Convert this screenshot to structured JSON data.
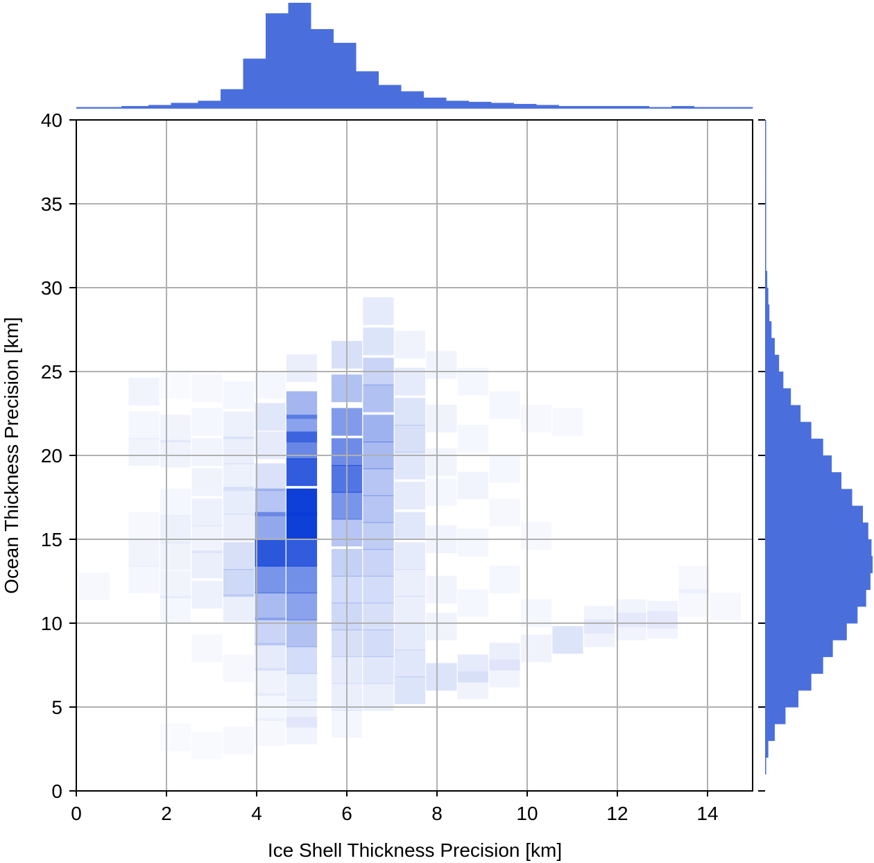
{
  "chart_data": {
    "type": "heatmap",
    "subtype": "joint-histogram-with-marginals",
    "title": "",
    "xlabel": "Ice Shell Thickness Precision [km]",
    "ylabel": "Ocean Thickness Precision [km]",
    "xlim": [
      0,
      15
    ],
    "ylim": [
      0,
      40
    ],
    "x_ticks": [
      0,
      2,
      4,
      6,
      8,
      10,
      12,
      14
    ],
    "y_ticks": [
      0,
      5,
      10,
      15,
      20,
      25,
      30,
      35,
      40
    ],
    "grid": true,
    "color": "#4a6fdc",
    "heatmap_color": "#0a3dd6",
    "joint_bin_edges_note": "",
    "joint_cells": [
      [
        -0.3,
        12.5,
        0.02
      ],
      [
        0.4,
        12.2,
        0.03
      ],
      [
        1.5,
        23.8,
        0.05
      ],
      [
        1.5,
        21.8,
        0.04
      ],
      [
        1.5,
        20.2,
        0.05
      ],
      [
        1.5,
        15.8,
        0.03
      ],
      [
        1.5,
        14.2,
        0.05
      ],
      [
        1.5,
        12.6,
        0.04
      ],
      [
        2.2,
        24.2,
        0.02
      ],
      [
        2.2,
        21.6,
        0.05
      ],
      [
        2.2,
        20.1,
        0.06
      ],
      [
        2.2,
        17.2,
        0.04
      ],
      [
        2.2,
        15.6,
        0.07
      ],
      [
        2.2,
        14.0,
        0.06
      ],
      [
        2.2,
        12.3,
        0.05
      ],
      [
        2.2,
        10.8,
        0.04
      ],
      [
        2.2,
        3.2,
        0.02
      ],
      [
        2.9,
        24.0,
        0.03
      ],
      [
        2.9,
        22.0,
        0.04
      ],
      [
        2.9,
        20.2,
        0.05
      ],
      [
        2.9,
        18.4,
        0.06
      ],
      [
        2.9,
        16.6,
        0.07
      ],
      [
        2.9,
        15.0,
        0.06
      ],
      [
        2.9,
        13.5,
        0.08
      ],
      [
        2.9,
        11.7,
        0.07
      ],
      [
        2.9,
        8.5,
        0.03
      ],
      [
        2.9,
        2.7,
        0.02
      ],
      [
        3.6,
        23.6,
        0.04
      ],
      [
        3.6,
        21.8,
        0.07
      ],
      [
        3.6,
        20.3,
        0.08
      ],
      [
        3.6,
        18.7,
        0.07
      ],
      [
        3.6,
        17.3,
        0.09
      ],
      [
        3.6,
        15.7,
        0.08
      ],
      [
        3.6,
        14.0,
        0.16
      ],
      [
        3.6,
        12.4,
        0.2
      ],
      [
        3.6,
        10.9,
        0.08
      ],
      [
        3.6,
        7.3,
        0.03
      ],
      [
        3.6,
        3.0,
        0.03
      ],
      [
        4.3,
        24.2,
        0.04
      ],
      [
        4.3,
        22.3,
        0.12
      ],
      [
        4.3,
        20.6,
        0.1
      ],
      [
        4.3,
        18.7,
        0.15
      ],
      [
        4.3,
        17.2,
        0.3
      ],
      [
        4.3,
        15.8,
        0.45
      ],
      [
        4.3,
        14.2,
        0.88
      ],
      [
        4.3,
        12.6,
        0.55
      ],
      [
        4.3,
        11.0,
        0.35
      ],
      [
        4.3,
        9.5,
        0.22
      ],
      [
        4.3,
        8.0,
        0.1
      ],
      [
        4.3,
        6.5,
        0.06
      ],
      [
        4.3,
        5.0,
        0.04
      ],
      [
        4.3,
        3.5,
        0.03
      ],
      [
        5.0,
        25.2,
        0.08
      ],
      [
        5.0,
        23.0,
        0.38
      ],
      [
        5.0,
        21.6,
        0.48
      ],
      [
        5.0,
        20.6,
        0.62
      ],
      [
        5.0,
        19.0,
        0.85
      ],
      [
        5.0,
        17.2,
        1.0
      ],
      [
        5.0,
        15.8,
        1.0
      ],
      [
        5.0,
        14.2,
        0.85
      ],
      [
        5.0,
        12.6,
        0.58
      ],
      [
        5.0,
        11.0,
        0.48
      ],
      [
        5.0,
        9.4,
        0.32
      ],
      [
        5.0,
        7.8,
        0.18
      ],
      [
        5.0,
        6.2,
        0.09
      ],
      [
        5.0,
        4.6,
        0.07
      ],
      [
        5.0,
        3.6,
        0.05
      ],
      [
        6.0,
        26.0,
        0.16
      ],
      [
        6.0,
        24.0,
        0.32
      ],
      [
        6.0,
        22.0,
        0.52
      ],
      [
        6.0,
        20.2,
        0.6
      ],
      [
        6.0,
        18.6,
        0.72
      ],
      [
        6.0,
        17.0,
        0.55
      ],
      [
        6.0,
        15.4,
        0.3
      ],
      [
        6.0,
        13.6,
        0.24
      ],
      [
        6.0,
        12.0,
        0.18
      ],
      [
        6.0,
        10.4,
        0.2
      ],
      [
        6.0,
        8.8,
        0.16
      ],
      [
        6.0,
        7.2,
        0.1
      ],
      [
        6.0,
        5.6,
        0.08
      ],
      [
        6.0,
        4.0,
        0.04
      ],
      [
        6.7,
        28.6,
        0.1
      ],
      [
        6.7,
        26.8,
        0.14
      ],
      [
        6.7,
        25.0,
        0.22
      ],
      [
        6.7,
        23.4,
        0.32
      ],
      [
        6.7,
        21.6,
        0.4
      ],
      [
        6.7,
        20.0,
        0.36
      ],
      [
        6.7,
        18.4,
        0.3
      ],
      [
        6.7,
        16.8,
        0.3
      ],
      [
        6.7,
        15.2,
        0.26
      ],
      [
        6.7,
        13.6,
        0.22
      ],
      [
        6.7,
        12.0,
        0.18
      ],
      [
        6.7,
        10.4,
        0.16
      ],
      [
        6.7,
        8.8,
        0.18
      ],
      [
        6.7,
        7.2,
        0.12
      ],
      [
        6.7,
        5.6,
        0.08
      ],
      [
        7.4,
        26.6,
        0.06
      ],
      [
        7.4,
        24.4,
        0.1
      ],
      [
        7.4,
        22.6,
        0.14
      ],
      [
        7.4,
        21.0,
        0.16
      ],
      [
        7.4,
        19.4,
        0.12
      ],
      [
        7.4,
        17.6,
        0.1
      ],
      [
        7.4,
        15.8,
        0.12
      ],
      [
        7.4,
        14.0,
        0.1
      ],
      [
        7.4,
        12.4,
        0.08
      ],
      [
        7.4,
        10.8,
        0.08
      ],
      [
        7.4,
        9.2,
        0.1
      ],
      [
        7.4,
        7.6,
        0.12
      ],
      [
        7.4,
        6.0,
        0.14
      ],
      [
        8.1,
        25.4,
        0.05
      ],
      [
        8.1,
        22.2,
        0.06
      ],
      [
        8.1,
        19.6,
        0.05
      ],
      [
        8.1,
        17.8,
        0.04
      ],
      [
        8.1,
        15.0,
        0.05
      ],
      [
        8.1,
        12.0,
        0.05
      ],
      [
        8.1,
        9.8,
        0.06
      ],
      [
        8.1,
        6.8,
        0.14
      ],
      [
        8.8,
        24.4,
        0.04
      ],
      [
        8.8,
        21.0,
        0.04
      ],
      [
        8.8,
        18.2,
        0.05
      ],
      [
        8.8,
        14.8,
        0.04
      ],
      [
        8.8,
        11.2,
        0.04
      ],
      [
        8.8,
        7.3,
        0.1
      ],
      [
        8.8,
        6.3,
        0.06
      ],
      [
        9.5,
        23.0,
        0.04
      ],
      [
        9.5,
        19.2,
        0.04
      ],
      [
        9.5,
        16.6,
        0.03
      ],
      [
        9.5,
        12.6,
        0.04
      ],
      [
        9.5,
        8.0,
        0.08
      ],
      [
        9.5,
        7.0,
        0.05
      ],
      [
        10.2,
        22.2,
        0.03
      ],
      [
        10.2,
        15.2,
        0.03
      ],
      [
        10.2,
        10.6,
        0.04
      ],
      [
        10.2,
        8.5,
        0.06
      ],
      [
        10.9,
        22.0,
        0.03
      ],
      [
        10.9,
        9.0,
        0.14
      ],
      [
        11.6,
        10.2,
        0.05
      ],
      [
        11.6,
        9.4,
        0.06
      ],
      [
        12.3,
        10.6,
        0.05
      ],
      [
        12.3,
        9.8,
        0.05
      ],
      [
        13.0,
        10.5,
        0.05
      ],
      [
        13.0,
        9.9,
        0.05
      ],
      [
        13.7,
        12.6,
        0.03
      ],
      [
        13.7,
        11.2,
        0.03
      ],
      [
        14.4,
        11.0,
        0.03
      ]
    ],
    "joint_cell_format": [
      "x_center_km",
      "y_center_km",
      "relative_density"
    ],
    "marginal_x": {
      "bin_edges": [
        0,
        0.5,
        1,
        1.6,
        2.1,
        2.7,
        3.2,
        3.7,
        4.2,
        4.7,
        5.2,
        5.7,
        6.2,
        6.7,
        7.2,
        7.7,
        8.2,
        8.7,
        9.2,
        9.7,
        10.2,
        10.7,
        11.2,
        11.7,
        12.2,
        12.7,
        13.2,
        13.7,
        14.2,
        15
      ],
      "counts": [
        0.01,
        0.01,
        0.02,
        0.03,
        0.05,
        0.07,
        0.18,
        0.47,
        0.9,
        1.0,
        0.75,
        0.62,
        0.35,
        0.22,
        0.16,
        0.1,
        0.07,
        0.06,
        0.05,
        0.04,
        0.03,
        0.02,
        0.02,
        0.02,
        0.02,
        0.01,
        0.02,
        0.01,
        0.01
      ]
    },
    "marginal_y": {
      "bin_edges": [
        1,
        2,
        3,
        4,
        5,
        6,
        7,
        8,
        9,
        10,
        11,
        12,
        13,
        14,
        15,
        16,
        17,
        18,
        19,
        20,
        21,
        22,
        23,
        24,
        25,
        26,
        27,
        28,
        29,
        30,
        31,
        32,
        33,
        34,
        35,
        36,
        37,
        38,
        39,
        40
      ],
      "counts": [
        0.01,
        0.03,
        0.09,
        0.19,
        0.31,
        0.43,
        0.54,
        0.63,
        0.76,
        0.86,
        0.94,
        0.98,
        1.0,
        0.99,
        0.96,
        0.91,
        0.81,
        0.71,
        0.62,
        0.54,
        0.43,
        0.33,
        0.24,
        0.17,
        0.13,
        0.09,
        0.06,
        0.04,
        0.03,
        0.02,
        0.01,
        0.01,
        0.01,
        0.01,
        0.01,
        0.005,
        0.005,
        0.003,
        0.002
      ]
    }
  }
}
